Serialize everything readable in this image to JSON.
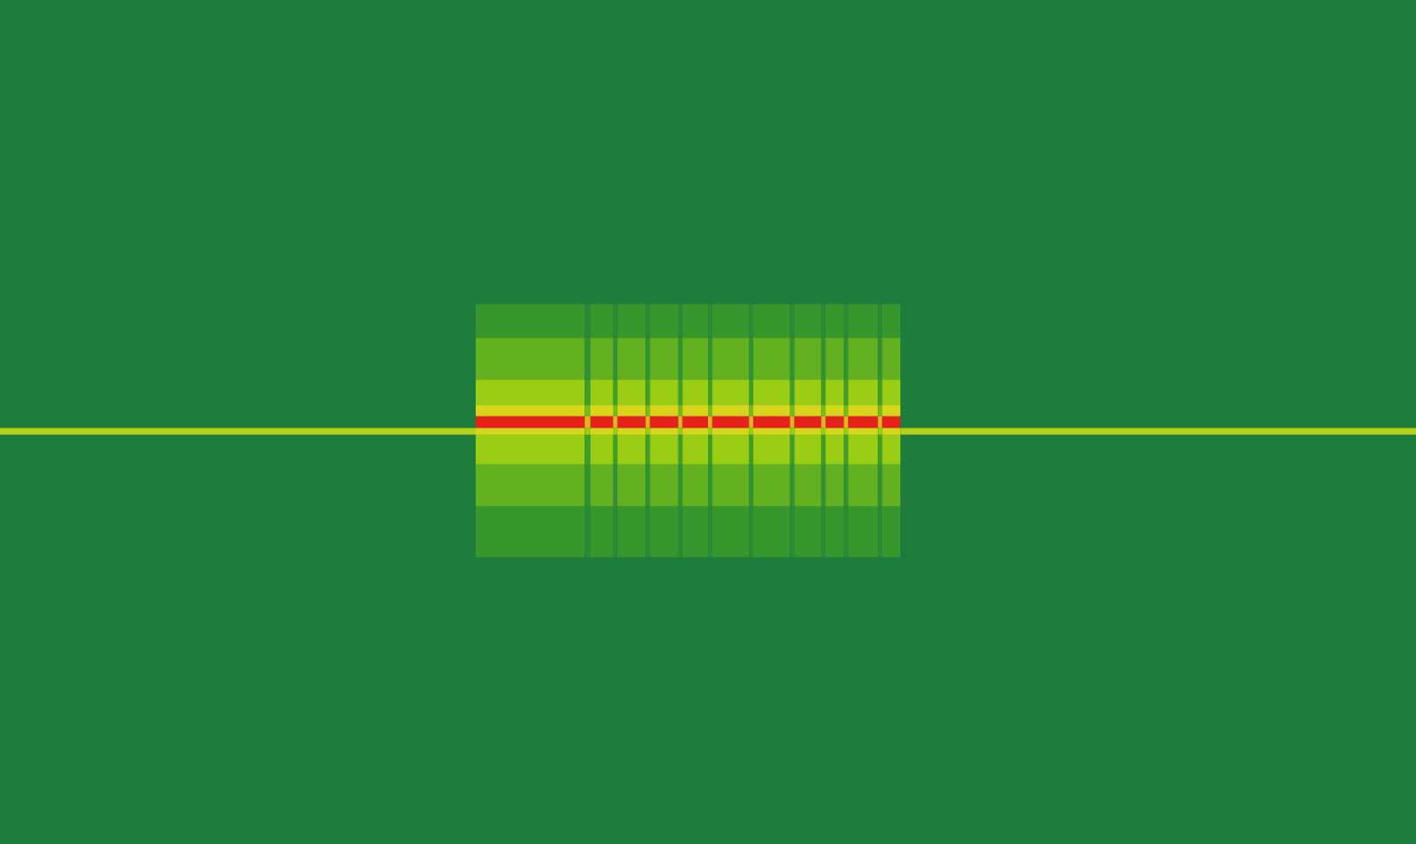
{
  "chart_data": {
    "type": "heatmap",
    "tick_labels": false,
    "xlim": [
      0,
      100
    ],
    "ylim": [
      0,
      100
    ],
    "x_edges": [
      0,
      33.6,
      41.3,
      41.7,
      43.3,
      43.6,
      45.6,
      45.9,
      47.9,
      48.2,
      50.0,
      50.3,
      52.9,
      53.2,
      55.8,
      56.1,
      58.0,
      58.3,
      59.6,
      59.9,
      62.0,
      62.3,
      63.6,
      100
    ],
    "y_edges": [
      0,
      34,
      40,
      45,
      48.5,
      49.3,
      50.7,
      52,
      55,
      60,
      64,
      100
    ],
    "color_lim": [
      0,
      10
    ],
    "colors": [
      "#1e7d3c",
      "#3f9e28",
      "#9acd14",
      "#e8d81e",
      "#e8201a"
    ],
    "cells": [
      [
        0,
        0,
        0,
        0,
        0,
        0,
        0,
        0,
        0,
        0,
        0,
        0,
        0,
        0,
        0,
        0,
        0,
        0,
        0,
        0,
        0,
        0,
        0
      ],
      [
        0,
        2,
        1,
        2,
        1,
        2,
        1,
        2,
        1,
        2,
        1,
        2,
        1,
        2,
        1,
        2,
        1,
        2,
        1,
        2,
        1,
        2,
        0
      ],
      [
        0,
        3.5,
        1.5,
        3.5,
        1.5,
        3.5,
        1.5,
        3.5,
        1.5,
        3.5,
        1.5,
        3.5,
        1.5,
        3.5,
        1.5,
        3.5,
        1.5,
        3.5,
        1.5,
        3.5,
        1.5,
        3.5,
        0
      ],
      [
        0,
        5,
        2.5,
        5,
        2.5,
        5,
        2.5,
        5,
        2.5,
        5,
        2.5,
        5,
        2.5,
        5,
        2.5,
        5,
        2.5,
        5,
        2.5,
        5,
        2.5,
        5,
        0
      ],
      [
        6,
        7,
        5,
        7,
        5,
        7,
        5,
        7,
        5,
        7,
        5,
        7,
        5,
        7,
        5,
        7,
        5,
        7,
        5,
        7,
        5,
        7,
        6
      ],
      [
        0,
        10,
        8,
        10,
        8,
        10,
        8,
        10,
        8,
        10,
        8,
        10,
        8,
        10,
        8,
        10,
        8,
        10,
        8,
        10,
        8,
        10,
        0
      ],
      [
        0,
        7,
        4,
        7,
        4,
        7,
        4,
        7,
        4,
        7,
        4,
        7,
        4,
        7,
        4,
        7,
        4,
        7,
        4,
        7,
        4,
        7,
        0
      ],
      [
        0,
        5,
        2.5,
        5,
        2.5,
        5,
        2.5,
        5,
        2.5,
        5,
        2.5,
        5,
        2.5,
        5,
        2.5,
        5,
        2.5,
        5,
        2.5,
        5,
        2.5,
        5,
        0
      ],
      [
        0,
        3.5,
        1.5,
        3.5,
        1.5,
        3.5,
        1.5,
        3.5,
        1.5,
        3.5,
        1.5,
        3.5,
        1.5,
        3.5,
        1.5,
        3.5,
        1.5,
        3.5,
        1.5,
        3.5,
        1.5,
        3.5,
        0
      ],
      [
        0,
        2,
        1,
        2,
        1,
        2,
        1,
        2,
        1,
        2,
        1,
        2,
        1,
        2,
        1,
        2,
        1,
        2,
        1,
        2,
        1,
        2,
        0
      ],
      [
        0,
        0,
        0,
        0,
        0,
        0,
        0,
        0,
        0,
        0,
        0,
        0,
        0,
        0,
        0,
        0,
        0,
        0,
        0,
        0,
        0,
        0,
        0
      ]
    ]
  }
}
